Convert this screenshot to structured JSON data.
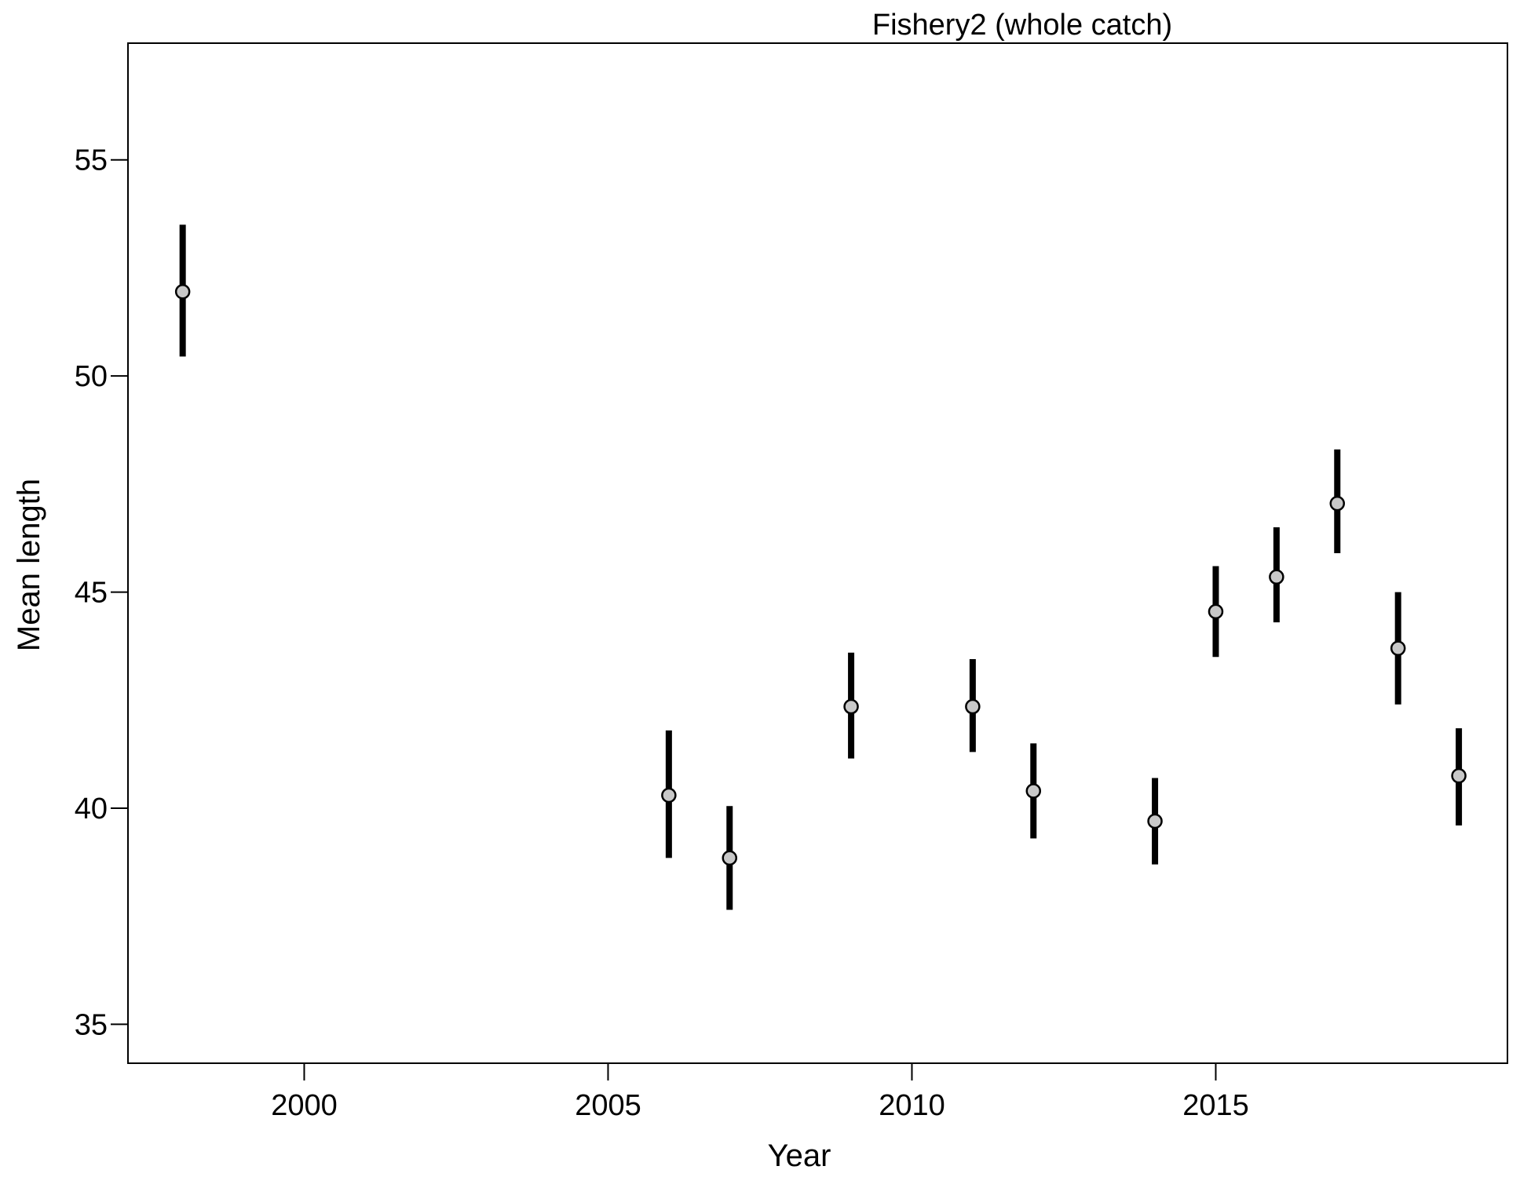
{
  "chart_data": {
    "type": "scatter",
    "title": "Fishery2 (whole catch)",
    "xlabel": "Year",
    "ylabel": "Mean length",
    "xlim": [
      1997.1,
      2019.8
    ],
    "ylim": [
      34.1,
      57.7
    ],
    "xticks": [
      2000,
      2005,
      2010,
      2015
    ],
    "yticks": [
      35,
      40,
      45,
      50,
      55
    ],
    "grid": false,
    "legend": "none",
    "colors": {
      "errorbar": "#000000",
      "point_fill": "#c8c8c8",
      "point_stroke": "#000000"
    },
    "points": [
      {
        "x": 1998,
        "y": 51.95,
        "lo": 50.45,
        "hi": 53.5
      },
      {
        "x": 2006,
        "y": 40.3,
        "lo": 38.85,
        "hi": 41.8
      },
      {
        "x": 2007,
        "y": 38.85,
        "lo": 37.65,
        "hi": 40.05
      },
      {
        "x": 2009,
        "y": 42.35,
        "lo": 41.15,
        "hi": 43.6
      },
      {
        "x": 2011,
        "y": 42.35,
        "lo": 41.3,
        "hi": 43.45
      },
      {
        "x": 2012,
        "y": 40.4,
        "lo": 39.3,
        "hi": 41.5
      },
      {
        "x": 2014,
        "y": 39.7,
        "lo": 38.7,
        "hi": 40.7
      },
      {
        "x": 2015,
        "y": 44.55,
        "lo": 43.5,
        "hi": 45.6
      },
      {
        "x": 2016,
        "y": 45.35,
        "lo": 44.3,
        "hi": 46.5
      },
      {
        "x": 2017,
        "y": 47.05,
        "lo": 45.9,
        "hi": 48.3
      },
      {
        "x": 2018,
        "y": 43.7,
        "lo": 42.4,
        "hi": 45.0
      },
      {
        "x": 2019,
        "y": 40.75,
        "lo": 39.6,
        "hi": 41.85
      }
    ]
  }
}
